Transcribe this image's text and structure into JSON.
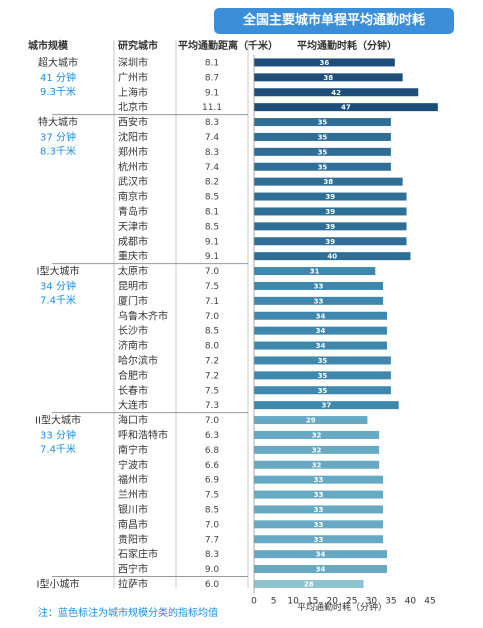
{
  "chart_data": {
    "type": "bar",
    "orientation": "horizontal",
    "title": "全国主要城市单程平均通勤时耗",
    "columns": {
      "group": "城市规模",
      "city": "研究城市",
      "distance": "平均通勤距离（千米）",
      "time": "平均通勤时耗（分钟）"
    },
    "xlabel": "平均通勤时耗（分钟）",
    "xlim": [
      0,
      45
    ],
    "xticks": [
      0,
      5,
      10,
      15,
      20,
      25,
      30,
      35,
      40,
      45
    ],
    "colors": {
      "超大城市": "#1d4e7a",
      "特大城市": "#2f6f97",
      "I型大城市": "#3f88ad",
      "II型大城市": "#67a9c2",
      "I型小城市": "#8fc3cf"
    },
    "groups": [
      {
        "name": "超大城市",
        "time": "41 分钟",
        "distance": "9.3千米",
        "cities": [
          [
            "深圳市",
            "8.1",
            36
          ],
          [
            "广州市",
            "8.7",
            38
          ],
          [
            "上海市",
            "9.1",
            42
          ],
          [
            "北京市",
            "11.1",
            47
          ]
        ]
      },
      {
        "name": "特大城市",
        "time": "37 分钟",
        "distance": "8.3千米",
        "cities": [
          [
            "西安市",
            "8.3",
            35
          ],
          [
            "沈阳市",
            "7.4",
            35
          ],
          [
            "郑州市",
            "8.3",
            35
          ],
          [
            "杭州市",
            "7.4",
            35
          ],
          [
            "武汉市",
            "8.2",
            38
          ],
          [
            "南京市",
            "8.5",
            39
          ],
          [
            "青岛市",
            "8.1",
            39
          ],
          [
            "天津市",
            "8.5",
            39
          ],
          [
            "成都市",
            "9.1",
            39
          ],
          [
            "重庆市",
            "9.1",
            40
          ]
        ]
      },
      {
        "name": "I型大城市",
        "time": "34 分钟",
        "distance": "7.4千米",
        "cities": [
          [
            "太原市",
            "7.0",
            31
          ],
          [
            "昆明市",
            "7.5",
            33
          ],
          [
            "厦门市",
            "7.1",
            33
          ],
          [
            "乌鲁木齐市",
            "7.0",
            34
          ],
          [
            "长沙市",
            "8.5",
            34
          ],
          [
            "济南市",
            "8.0",
            34
          ],
          [
            "哈尔滨市",
            "7.2",
            35
          ],
          [
            "合肥市",
            "7.2",
            35
          ],
          [
            "长春市",
            "7.5",
            35
          ],
          [
            "大连市",
            "7.3",
            37
          ]
        ]
      },
      {
        "name": "II型大城市",
        "time": "33 分钟",
        "distance": "7.4千米",
        "cities": [
          [
            "海口市",
            "7.0",
            29
          ],
          [
            "呼和浩特市",
            "6.3",
            32
          ],
          [
            "南宁市",
            "6.8",
            32
          ],
          [
            "宁波市",
            "6.6",
            32
          ],
          [
            "福州市",
            "6.9",
            33
          ],
          [
            "兰州市",
            "7.5",
            33
          ],
          [
            "银川市",
            "8.5",
            33
          ],
          [
            "南昌市",
            "7.0",
            33
          ],
          [
            "贵阳市",
            "7.7",
            33
          ],
          [
            "石家庄市",
            "8.3",
            34
          ],
          [
            "西宁市",
            "9.0",
            34
          ]
        ]
      },
      {
        "name": "I型小城市",
        "time": "",
        "distance": "",
        "cities": [
          [
            "拉萨市",
            "6.0",
            28
          ]
        ]
      }
    ]
  },
  "note": "注：蓝色标注为城市规模分类的指标均值"
}
